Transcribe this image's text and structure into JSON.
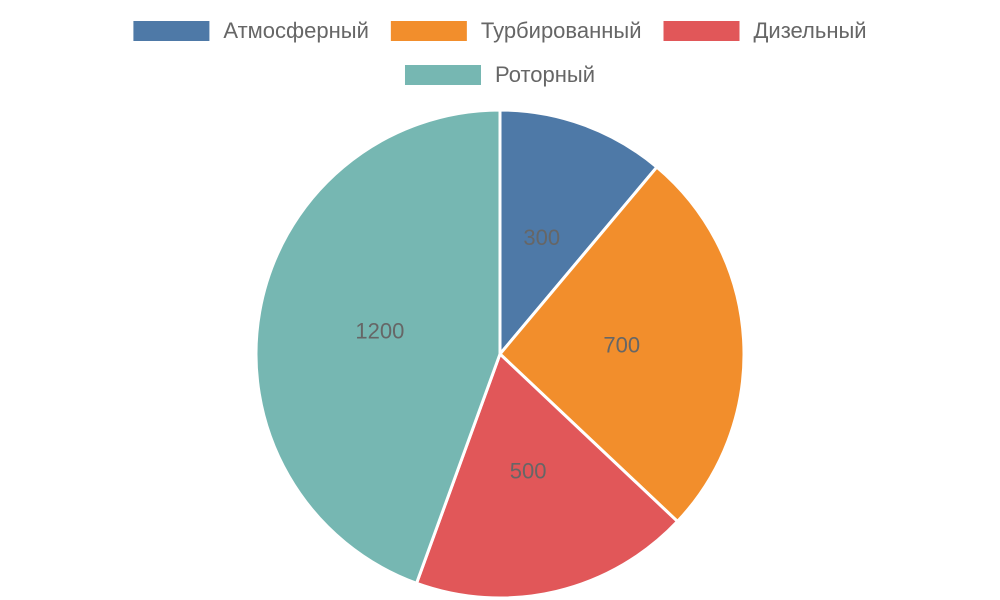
{
  "chart_data": {
    "type": "pie",
    "categories": [
      "Атмосферный",
      "Турбированный",
      "Дизельный",
      "Роторный"
    ],
    "values": [
      300,
      700,
      500,
      1200
    ],
    "colors": [
      "#4e79a7",
      "#f28e2c",
      "#e15759",
      "#76b7b2"
    ],
    "legend": "top"
  }
}
